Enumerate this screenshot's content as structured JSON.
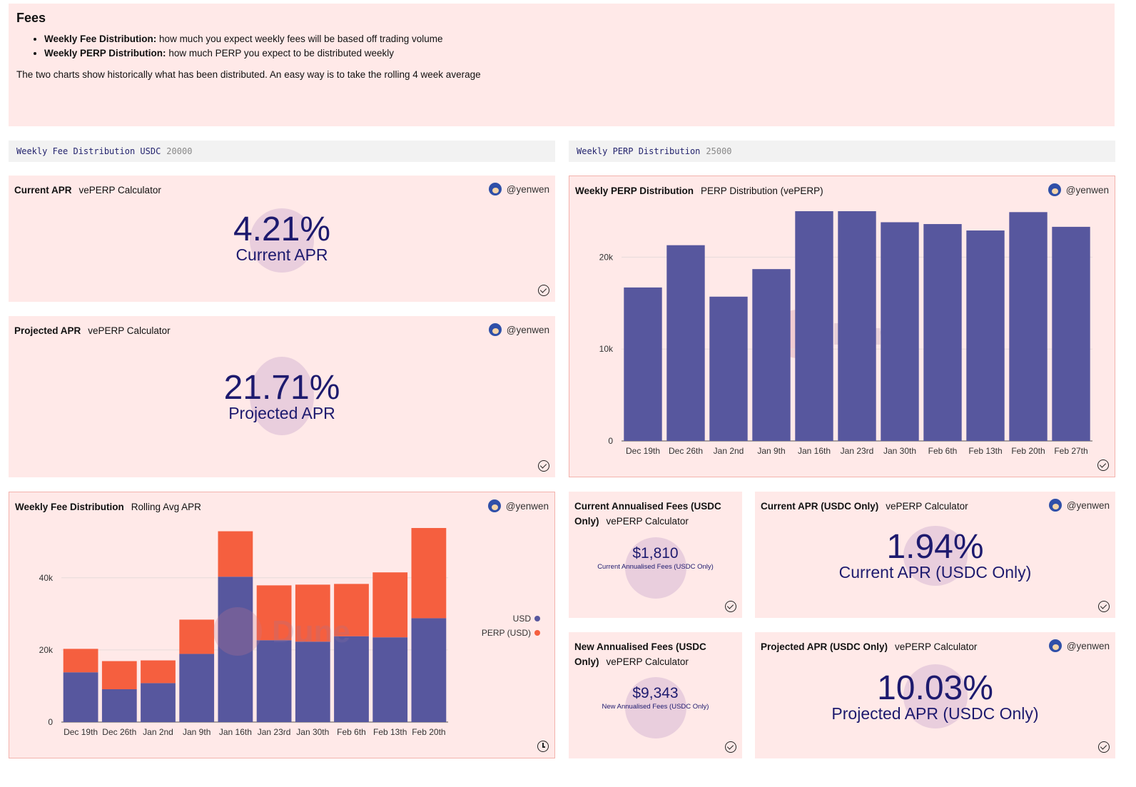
{
  "fees": {
    "title": "Fees",
    "bullets": [
      {
        "bold": "Weekly Fee Distribution:",
        "text": "how much you expect weekly fees will be based off trading volume"
      },
      {
        "bold": "Weekly PERP Distribution:",
        "text": "how much PERP you expect to be distributed weekly"
      }
    ],
    "note": "The two charts show historically what has been distributed. An easy way is to take the rolling 4 week average"
  },
  "params": [
    {
      "name": "Weekly Fee Distribution USDC",
      "value": "20000"
    },
    {
      "name": "Weekly PERP Distribution",
      "value": "25000"
    }
  ],
  "author": "@yenwen",
  "watermark": "Dune",
  "cards": {
    "current_apr": {
      "title": "Current APR",
      "subtitle": "vePERP Calculator",
      "value": "4.21%",
      "label": "Current APR"
    },
    "projected_apr": {
      "title": "Projected APR",
      "subtitle": "vePERP Calculator",
      "value": "21.71%",
      "label": "Projected APR"
    },
    "perp_chart": {
      "title": "Weekly PERP Distribution",
      "subtitle": "PERP Distribution (vePERP)"
    },
    "fee_chart": {
      "title": "Weekly Fee Distribution",
      "subtitle": "Rolling Avg APR"
    },
    "current_fees": {
      "title_line1": "Current Annualised Fees (USDC",
      "title_line2": "Only)",
      "subtitle": "vePERP Calculator",
      "value": "$1,810",
      "label": "Current Annualised Fees (USDC Only)"
    },
    "new_fees": {
      "title_line1": "New Annualised Fees (USDC",
      "title_line2": "Only)",
      "subtitle": "vePERP Calculator",
      "value": "$9,343",
      "label": "New Annualised Fees (USDC Only)"
    },
    "current_apr_usdc": {
      "title": "Current APR (USDC Only)",
      "subtitle": "vePERP Calculator",
      "value": "1.94%",
      "label": "Current APR (USDC Only)"
    },
    "projected_apr_usdc": {
      "title": "Projected APR (USDC Only)",
      "subtitle": "vePERP Calculator",
      "value": "10.03%",
      "label": "Projected APR (USDC Only)"
    }
  },
  "colors": {
    "bar_primary": "#57579e",
    "bar_secondary": "#f55f3f",
    "text_dark": "#1d1a6e",
    "panel_bg": "#ffe9e8"
  },
  "icons": {
    "status": "check-circle-icon",
    "pending": "clock-icon"
  },
  "chart_data": [
    {
      "type": "bar",
      "categories": [
        "Dec 19th",
        "Dec 26th",
        "Jan 2nd",
        "Jan 9th",
        "Jan 16th",
        "Jan 23rd",
        "Jan 30th",
        "Feb 6th",
        "Feb 13th",
        "Feb 20th",
        "Feb 27th"
      ],
      "series": [
        {
          "values": [
            16700,
            21300,
            15700,
            18700,
            25000,
            25000,
            23800,
            23600,
            22900,
            24900,
            23300
          ]
        }
      ],
      "yticks": [
        0,
        10000,
        20000
      ],
      "ytick_labels": [
        "0",
        "10k",
        "20k"
      ],
      "ylim": [
        0,
        25000
      ],
      "grid": true
    },
    {
      "type": "bar",
      "stacked": true,
      "categories": [
        "Dec 19th",
        "Dec 26th",
        "Jan 2nd",
        "Jan 9th",
        "Jan 16th",
        "Jan 23rd",
        "Jan 30th",
        "Feb 6th",
        "Feb 13th",
        "Feb 20th"
      ],
      "series": [
        {
          "name": "USD",
          "values": [
            13800,
            9100,
            10800,
            18900,
            40300,
            22700,
            22300,
            23800,
            23500,
            28800
          ]
        },
        {
          "name": "PERP (USD)",
          "values": [
            6500,
            7800,
            6300,
            9500,
            12600,
            15200,
            15800,
            14500,
            18000,
            25000
          ]
        }
      ],
      "yticks": [
        0,
        20000,
        40000
      ],
      "ytick_labels": [
        "0",
        "20k",
        "40k"
      ],
      "ylim": [
        0,
        54000
      ],
      "legend": "right",
      "grid": true
    }
  ]
}
